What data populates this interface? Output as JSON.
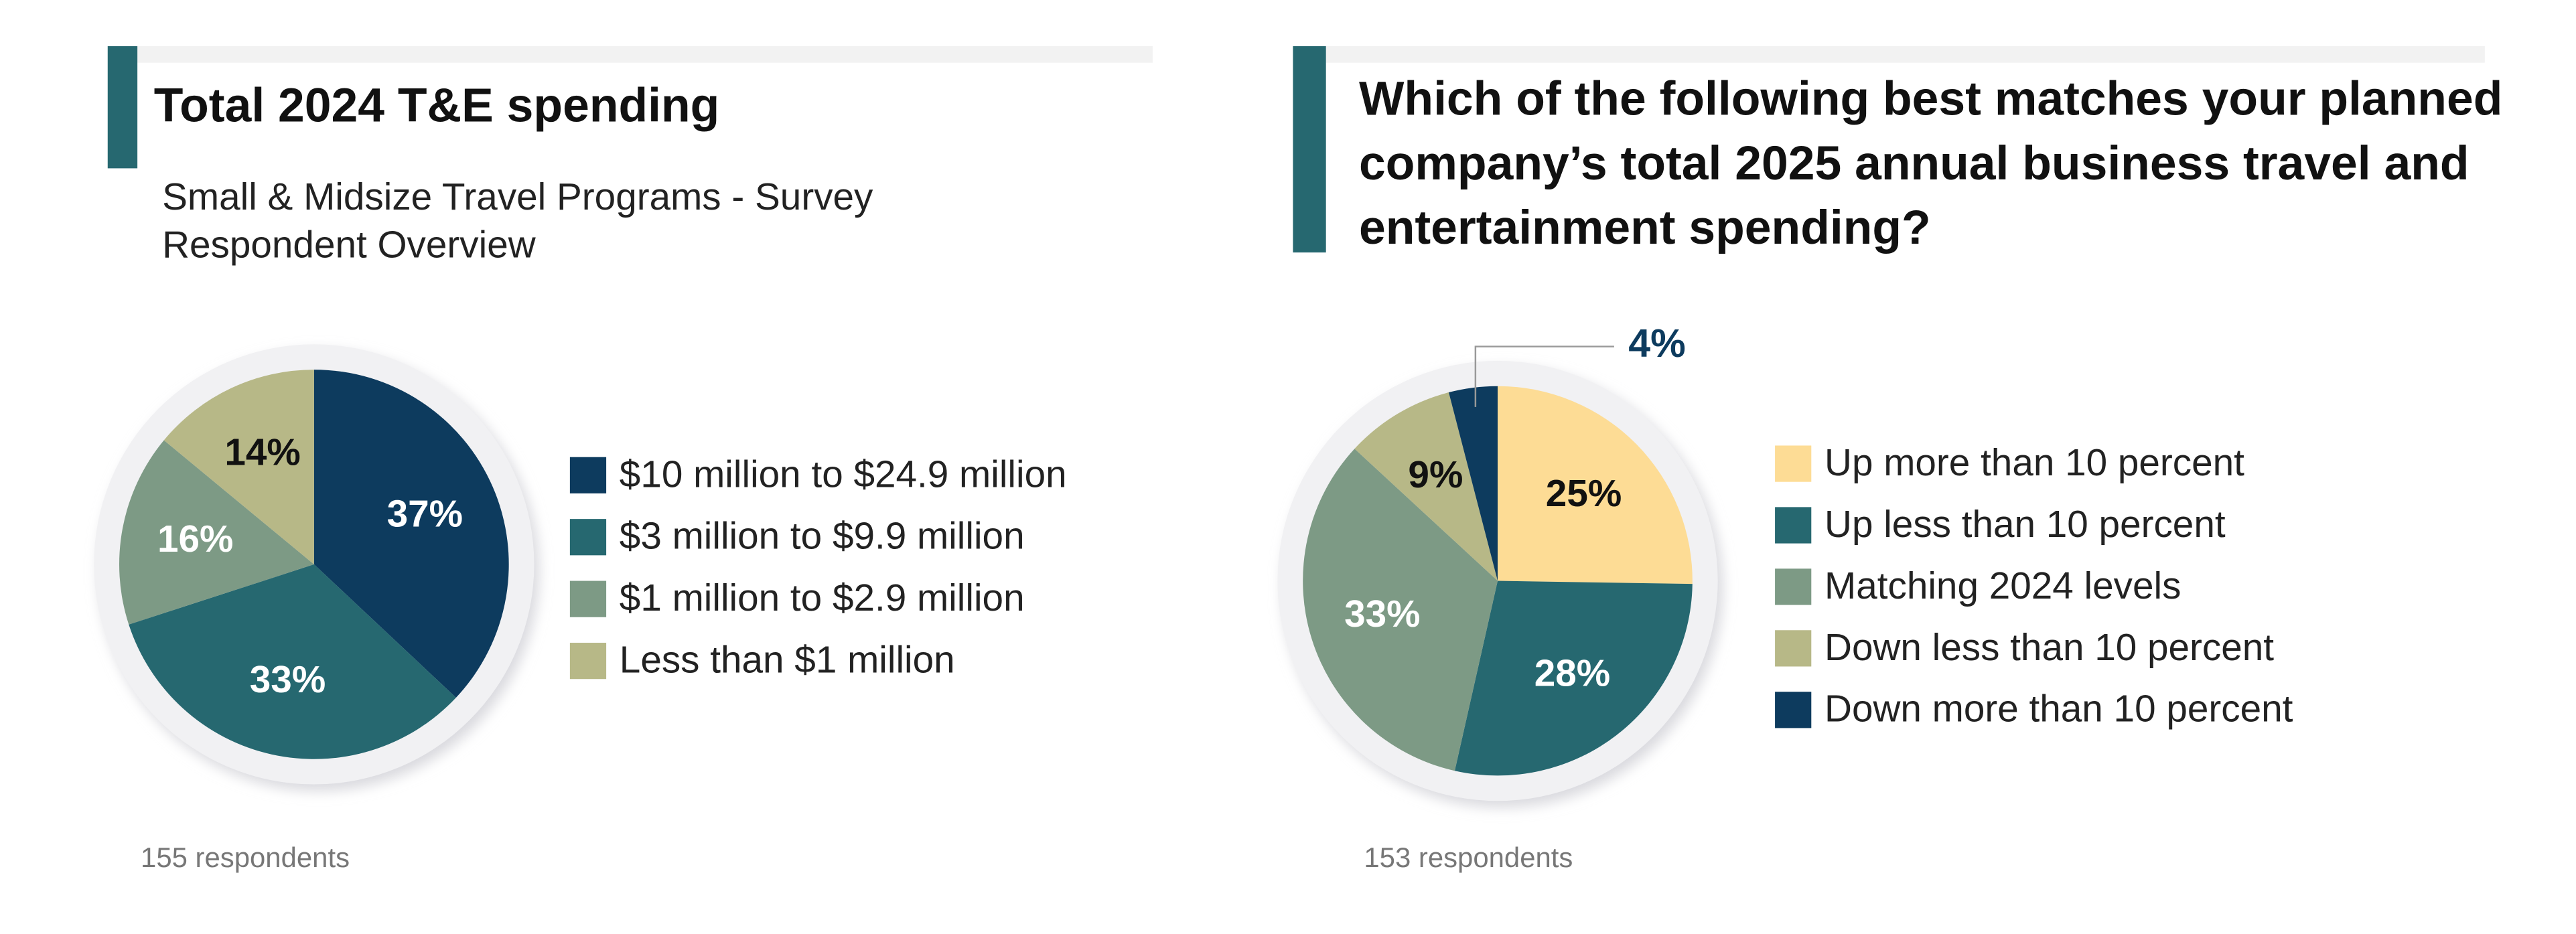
{
  "chart_data": [
    {
      "type": "pie",
      "title": "Total 2024 T&E spending",
      "subtitle": [
        "Small & Midsize Travel Programs - Survey",
        "Respondent Overview"
      ],
      "categories": [
        "$10 million to $24.9 million",
        "$3 million to $9.9 million",
        "$1 million to $2.9 million",
        "Less than $1 million"
      ],
      "values": [
        37,
        33,
        16,
        14
      ],
      "value_labels": [
        "37%",
        "33%",
        "16%",
        "14%"
      ],
      "colors": [
        "#0d3b5e",
        "#266870",
        "#7d9a85",
        "#b7b887"
      ],
      "note": "155 respondents"
    },
    {
      "type": "pie",
      "title": [
        "Which of the following best matches your planned",
        "company’s total 2025 annual business travel and",
        "entertainment spending?"
      ],
      "categories": [
        "Up more than 10 percent",
        "Up less than 10 percent",
        "Matching 2024 levels",
        "Down less than 10 percent",
        "Down more than 10 percent"
      ],
      "values": [
        25,
        28,
        33,
        9,
        4
      ],
      "value_labels": [
        "25%",
        "28%",
        "33%",
        "9%",
        "4%"
      ],
      "colors": [
        "#fddc95",
        "#266870",
        "#7d9a85",
        "#b7b887",
        "#0d3b5e"
      ],
      "note": "153 respondents"
    }
  ]
}
